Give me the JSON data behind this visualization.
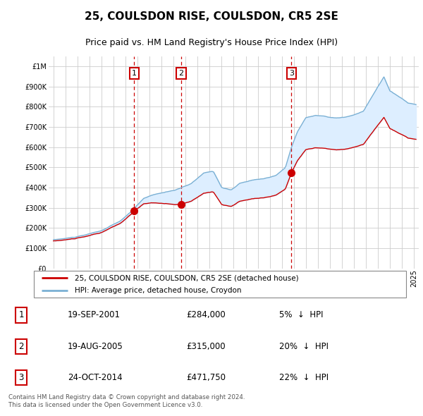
{
  "title": "25, COULSDON RISE, COULSDON, CR5 2SE",
  "subtitle": "Price paid vs. HM Land Registry's House Price Index (HPI)",
  "footer": "Contains HM Land Registry data © Crown copyright and database right 2024.\nThis data is licensed under the Open Government Licence v3.0.",
  "legend_red": "25, COULSDON RISE, COULSDON, CR5 2SE (detached house)",
  "legend_blue": "HPI: Average price, detached house, Croydon",
  "transactions": [
    {
      "num": 1,
      "date": "19-SEP-2001",
      "price": 284000,
      "pct": "5%",
      "dir": "↓",
      "x_year": 2001.72
    },
    {
      "num": 2,
      "date": "19-AUG-2005",
      "price": 315000,
      "pct": "20%",
      "dir": "↓",
      "x_year": 2005.63
    },
    {
      "num": 3,
      "date": "24-OCT-2014",
      "price": 471750,
      "pct": "22%",
      "dir": "↓",
      "x_year": 2014.81
    }
  ],
  "ylim": [
    0,
    1050000
  ],
  "xlim_start": 1994.6,
  "xlim_end": 2025.4,
  "background_color": "#ffffff",
  "plot_bg_color": "#ffffff",
  "grid_color": "#cccccc",
  "red_color": "#cc0000",
  "blue_color": "#7ab0d4",
  "shade_color": "#ddeeff",
  "marker_color": "#cc0000",
  "vline_color": "#cc0000",
  "box_color": "#cc0000"
}
